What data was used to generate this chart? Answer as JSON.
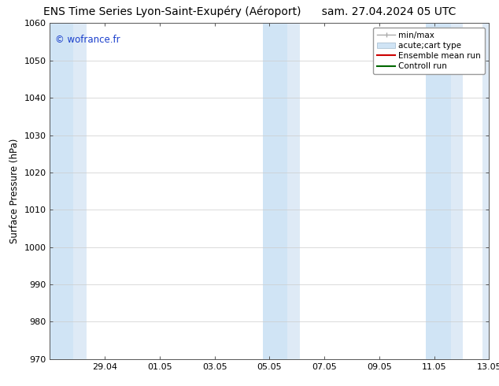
{
  "title_left": "ENS Time Series Lyon-Saint-Exupéry (Aéroport)",
  "title_right": "sam. 27.04.2024 05 UTC",
  "ylabel": "Surface Pressure (hPa)",
  "ylim": [
    970,
    1060
  ],
  "yticks": [
    970,
    980,
    990,
    1000,
    1010,
    1020,
    1030,
    1040,
    1050,
    1060
  ],
  "xtick_labels": [
    "29.04",
    "01.05",
    "03.05",
    "05.05",
    "07.05",
    "09.05",
    "11.05",
    "13.05"
  ],
  "xtick_positions": [
    2,
    4,
    6,
    8,
    10,
    12,
    14,
    16
  ],
  "xlim": [
    0,
    16
  ],
  "watermark": "© wofrance.fr",
  "watermark_color": "#1a3fcc",
  "bg_color": "#ffffff",
  "plot_bg_color": "#ffffff",
  "shaded_regions": [
    [
      0.0,
      0.85,
      "#d0e4f5"
    ],
    [
      0.85,
      1.35,
      "#deeaf6"
    ],
    [
      7.75,
      8.65,
      "#d0e4f5"
    ],
    [
      8.65,
      9.1,
      "#deeaf6"
    ],
    [
      13.7,
      14.6,
      "#d0e4f5"
    ],
    [
      14.6,
      15.05,
      "#deeaf6"
    ],
    [
      15.75,
      16.0,
      "#deeaf6"
    ]
  ],
  "legend_minmax_color": "#aaaaaa",
  "legend_acute_color": "#d0e4f5",
  "legend_acute_edge": "#a0b8cc",
  "legend_ensemble_color": "#cc0000",
  "legend_control_color": "#006600",
  "title_fontsize": 10,
  "axis_fontsize": 8.5,
  "tick_fontsize": 8,
  "legend_fontsize": 7.5,
  "watermark_fontsize": 8.5
}
